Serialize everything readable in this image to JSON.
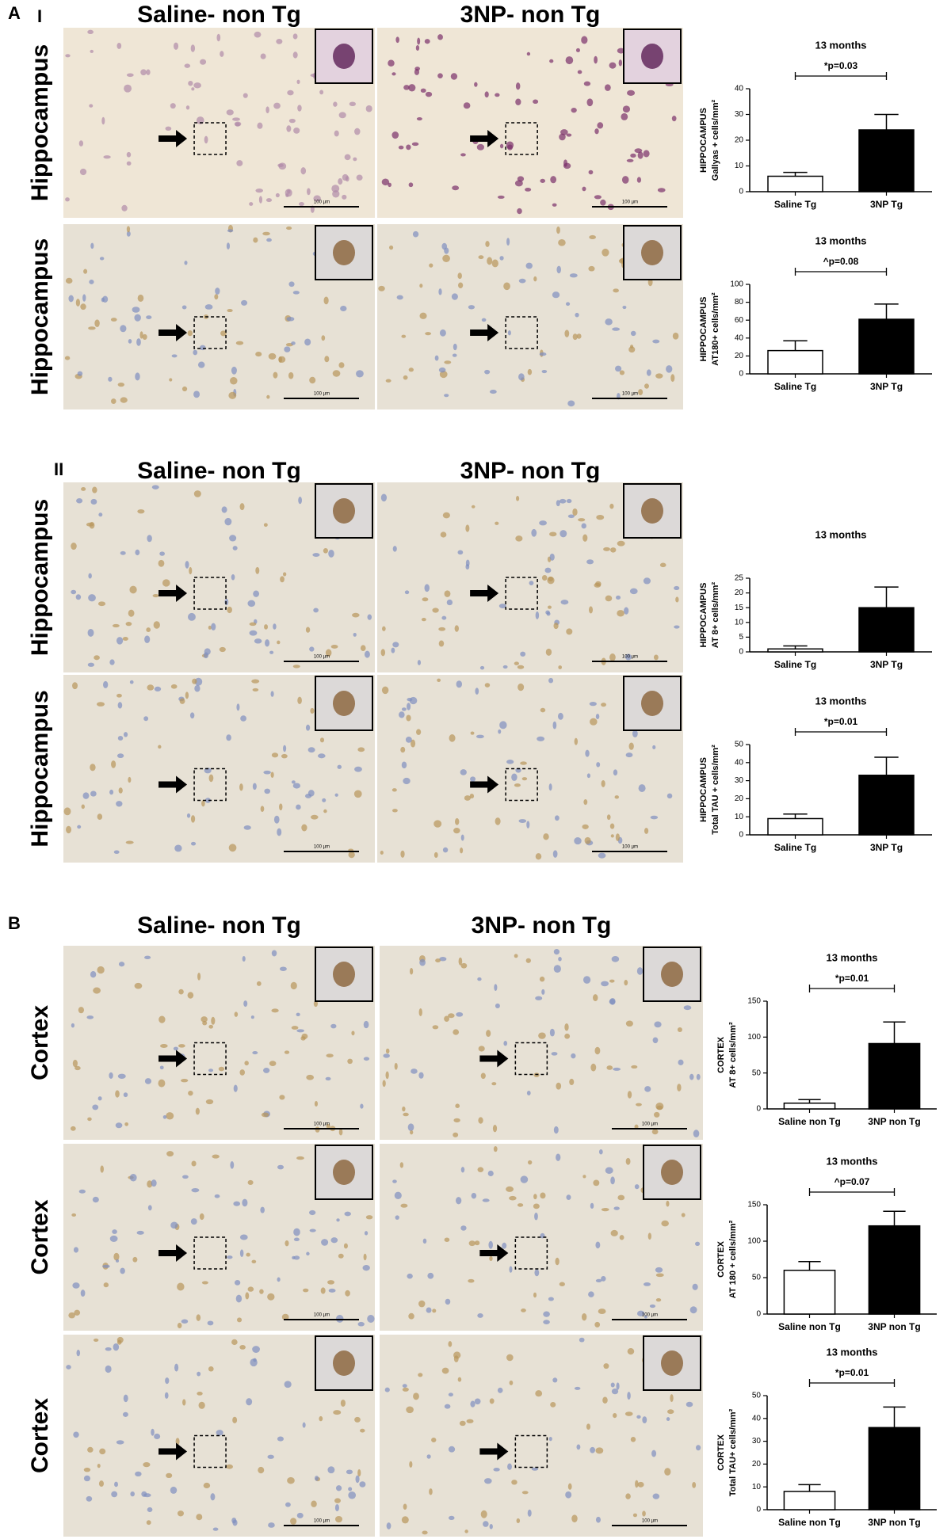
{
  "figure": {
    "sections": [
      {
        "labels": [
          "A",
          "I"
        ],
        "headers": [
          "Saline- non Tg",
          "3NP- non Tg"
        ],
        "rows": [
          {
            "region": "Hippocampus",
            "scale_bars": [
              "100 µm",
              "100 µm"
            ]
          },
          {
            "region": "Hippocampus",
            "scale_bars": [
              "100 µm",
              "100 µm"
            ]
          }
        ]
      },
      {
        "labels": [
          "II"
        ],
        "headers": [
          "Saline- non Tg",
          "3NP- non Tg"
        ],
        "rows": [
          {
            "region": "Hippocampus",
            "scale_bars": [
              "100 µm",
              "100 µm"
            ]
          },
          {
            "region": "Hippocampus",
            "scale_bars": [
              "100 µm",
              "100 µm"
            ]
          }
        ]
      },
      {
        "labels": [
          "B"
        ],
        "headers": [
          "Saline- non Tg",
          "3NP- non Tg"
        ],
        "rows": [
          {
            "region": "Cortex",
            "scale_bars": [
              "100 µm",
              "100 µm"
            ]
          },
          {
            "region": "Cortex",
            "scale_bars": [
              "100 µm",
              "100 µm"
            ]
          },
          {
            "region": "Cortex",
            "scale_bars": [
              "100 µm",
              "100 µm"
            ]
          }
        ]
      }
    ]
  },
  "chart_data": [
    {
      "type": "bar",
      "title": "13 months",
      "ylabel": [
        "HIPPOCAMPUS",
        "Gallyas + cells/mm²"
      ],
      "annotation": "*p=0.03",
      "categories": [
        "Saline Tg",
        "3NP Tg"
      ],
      "values": [
        6,
        24
      ],
      "errors": [
        1.5,
        6
      ],
      "colors": [
        "#ffffff",
        "#000000"
      ],
      "ylim": [
        0,
        40
      ],
      "yticks": [
        0,
        10,
        20,
        30,
        40
      ]
    },
    {
      "type": "bar",
      "title": "13 months",
      "ylabel": [
        "HIPPOCAMPUS",
        "AT180+ cells/mm²"
      ],
      "annotation": "^p=0.08",
      "categories": [
        "Saline Tg",
        "3NP Tg"
      ],
      "values": [
        26,
        61
      ],
      "errors": [
        11,
        17
      ],
      "colors": [
        "#ffffff",
        "#000000"
      ],
      "ylim": [
        0,
        100
      ],
      "yticks": [
        0,
        20,
        40,
        60,
        80,
        100
      ]
    },
    {
      "type": "bar",
      "title": "13 months",
      "ylabel": [
        "HIPPOCAMPUS",
        "AT 8+ cells/mm²"
      ],
      "categories": [
        "Saline Tg",
        "3NP Tg"
      ],
      "values": [
        1,
        15
      ],
      "errors": [
        1,
        7
      ],
      "colors": [
        "#ffffff",
        "#000000"
      ],
      "ylim": [
        0,
        25
      ],
      "yticks": [
        0,
        5,
        10,
        15,
        20,
        25
      ]
    },
    {
      "type": "bar",
      "title": "13 months",
      "ylabel": [
        "HIPPOCAMPUS",
        "Total TAU + cells/mm²"
      ],
      "annotation": "*p=0.01",
      "categories": [
        "Saline Tg",
        "3NP Tg"
      ],
      "values": [
        9,
        33
      ],
      "errors": [
        2.5,
        10
      ],
      "colors": [
        "#ffffff",
        "#000000"
      ],
      "ylim": [
        0,
        50
      ],
      "yticks": [
        0,
        10,
        20,
        30,
        40,
        50
      ]
    },
    {
      "type": "bar",
      "title": "13 months",
      "ylabel": [
        "CORTEX",
        "AT 8+ cells/mm²"
      ],
      "annotation": "*p=0.01",
      "categories": [
        "Saline non Tg",
        "3NP non Tg"
      ],
      "values": [
        8,
        91
      ],
      "errors": [
        5,
        30
      ],
      "colors": [
        "#ffffff",
        "#000000"
      ],
      "ylim": [
        0,
        150
      ],
      "yticks": [
        0,
        50,
        100,
        150
      ]
    },
    {
      "type": "bar",
      "title": "13 months",
      "ylabel": [
        "CORTEX",
        "AT 180 + cells/mm²"
      ],
      "annotation": "^p=0.07",
      "categories": [
        "Saline non Tg",
        "3NP non Tg"
      ],
      "values": [
        60,
        121
      ],
      "errors": [
        12,
        20
      ],
      "colors": [
        "#ffffff",
        "#000000"
      ],
      "ylim": [
        0,
        150
      ],
      "yticks": [
        0,
        50,
        100,
        150
      ]
    },
    {
      "type": "bar",
      "title": "13 months",
      "ylabel": [
        "CORTEX",
        "Total TAU+ cells/mm²"
      ],
      "annotation": "*p=0.01",
      "categories": [
        "Saline non Tg",
        "3NP non Tg"
      ],
      "values": [
        8,
        36
      ],
      "errors": [
        3,
        9
      ],
      "colors": [
        "#ffffff",
        "#000000"
      ],
      "ylim": [
        0,
        50
      ],
      "yticks": [
        0,
        10,
        20,
        30,
        40,
        50
      ]
    }
  ]
}
